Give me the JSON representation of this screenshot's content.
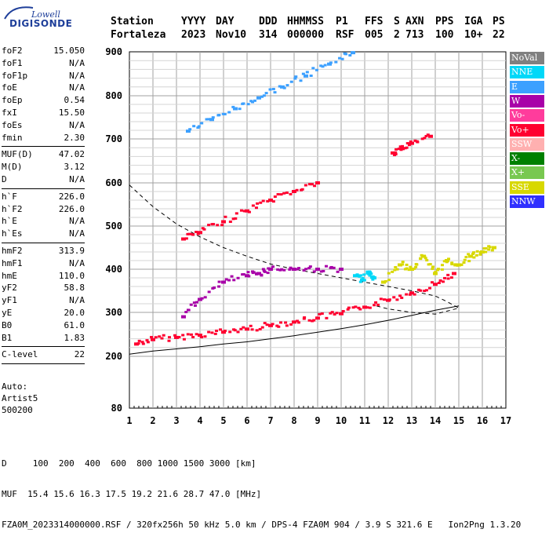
{
  "logo": {
    "top": "Lowell",
    "bottom": "DIGISONDE"
  },
  "header": {
    "line1": [
      "Station",
      "YYYY",
      "DAY",
      "DDD",
      "HHMMSS",
      "P1",
      "FFS",
      "S",
      "AXN",
      "PPS",
      "IGA",
      "PS"
    ],
    "line2": [
      "Fortaleza",
      "2023",
      "Nov10",
      "314",
      "000000",
      "RSF",
      "005",
      "2",
      "713",
      "100",
      "10+",
      "22"
    ]
  },
  "params_groups": [
    [
      {
        "label": "foF2",
        "value": "15.050"
      },
      {
        "label": "foF1",
        "value": "N/A"
      },
      {
        "label": "foF1p",
        "value": "N/A"
      },
      {
        "label": "foE",
        "value": "N/A"
      },
      {
        "label": "foEp",
        "value": "0.54"
      },
      {
        "label": "fxI",
        "value": "15.50"
      },
      {
        "label": "foEs",
        "value": "N/A"
      },
      {
        "label": "fmin",
        "value": "2.30"
      }
    ],
    [
      {
        "label": "MUF(D)",
        "value": "47.02"
      },
      {
        "label": "M(D)",
        "value": "3.12"
      },
      {
        "label": "D",
        "value": "N/A"
      }
    ],
    [
      {
        "label": "h`F",
        "value": "226.0"
      },
      {
        "label": "h`F2",
        "value": "226.0"
      },
      {
        "label": "h`E",
        "value": "N/A"
      },
      {
        "label": "h`Es",
        "value": "N/A"
      }
    ],
    [
      {
        "label": "hmF2",
        "value": "313.9"
      },
      {
        "label": "hmF1",
        "value": "N/A"
      },
      {
        "label": "hmE",
        "value": "110.0"
      },
      {
        "label": "yF2",
        "value": "58.8"
      },
      {
        "label": "yF1",
        "value": "N/A"
      },
      {
        "label": "yE",
        "value": "20.0"
      },
      {
        "label": "B0",
        "value": "61.0"
      },
      {
        "label": "B1",
        "value": "1.83"
      }
    ],
    [
      {
        "label": "C-level",
        "value": "22"
      }
    ]
  ],
  "auto": {
    "line1": "Auto:",
    "line2": "Artist5",
    "line3": "500200"
  },
  "legend": [
    {
      "name": "NoVal",
      "color": "#808080"
    },
    {
      "name": "NNE",
      "color": "#00d8f8"
    },
    {
      "name": "E",
      "color": "#3ca0ff"
    },
    {
      "name": "W",
      "color": "#a800a8"
    },
    {
      "name": "Vo-",
      "color": "#ff3c9c"
    },
    {
      "name": "Vo+",
      "color": "#ff0030"
    },
    {
      "name": "SSW",
      "color": "#ffb0b0"
    },
    {
      "name": "X-",
      "color": "#008000"
    },
    {
      "name": "X+",
      "color": "#78c850"
    },
    {
      "name": "SSE",
      "color": "#d8d800"
    },
    {
      "name": "NNW",
      "color": "#3030ff"
    }
  ],
  "bottom": {
    "line1": "D     100  200  400  600  800 1000 1500 3000 [km]",
    "line2": "MUF  15.4 15.6 16.3 17.5 19.2 21.6 28.7 47.0 [MHz]",
    "line3": "FZA0M_2023314000000.RSF / 320fx256h 50 kHz 5.0 km / DPS-4 FZA0M 904 / 3.9 S 321.6 E   Ion2Png 1.3.20"
  },
  "chart_data": {
    "type": "scatter",
    "x_ticks": [
      1,
      2,
      3,
      4,
      5,
      6,
      7,
      8,
      9,
      10,
      11,
      12,
      13,
      14,
      15,
      16,
      17
    ],
    "y_ticks": [
      80,
      200,
      300,
      400,
      500,
      600,
      700,
      800,
      900
    ],
    "xlim": [
      1,
      17
    ],
    "ylim": [
      80,
      900
    ],
    "y_scale": "nonlinear",
    "grid": true,
    "series": [
      {
        "name": "Vo+",
        "color": "#ff0030",
        "x": [
          1.3,
          2.0,
          3.0,
          4.0,
          5.0,
          6.0,
          7.0,
          8.0,
          9.0,
          10.0,
          11.0,
          12.0,
          13.0,
          14.0,
          14.8
        ],
        "y": [
          228,
          238,
          243,
          248,
          255,
          262,
          270,
          278,
          287,
          297,
          312,
          328,
          345,
          365,
          390
        ]
      },
      {
        "name": "W",
        "color": "#a800a8",
        "x": [
          3.3,
          4.0,
          5.0,
          6.0,
          6.5,
          7.0,
          8.0,
          9.0,
          10.0
        ],
        "y": [
          290,
          330,
          370,
          385,
          390,
          400,
          400,
          400,
          400
        ]
      },
      {
        "name": "Vo+",
        "color": "#ff0030",
        "x": [
          3.3,
          4.0,
          5.0,
          6.0,
          7.0,
          8.0,
          9.0
        ],
        "y": [
          470,
          485,
          510,
          535,
          560,
          580,
          600
        ]
      },
      {
        "name": "E",
        "color": "#3ca0ff",
        "x": [
          3.5,
          4.5,
          5.5,
          6.5,
          7.5,
          8.5,
          9.5,
          10.5
        ],
        "y": [
          718,
          745,
          770,
          795,
          820,
          845,
          872,
          898
        ]
      },
      {
        "name": "SSE",
        "color": "#d8d800",
        "x": [
          11.8,
          12.5,
          13.0,
          13.5,
          14.0,
          14.5,
          15.0,
          15.5,
          16.0,
          16.5
        ],
        "y": [
          370,
          410,
          400,
          430,
          390,
          420,
          410,
          430,
          440,
          450
        ]
      },
      {
        "name": "NNE",
        "color": "#00d8f8",
        "x": [
          10.6,
          10.9,
          11.2,
          11.4
        ],
        "y": [
          385,
          375,
          392,
          380
        ]
      },
      {
        "name": "Vo+",
        "color": "#ff0030",
        "x": [
          12.2,
          12.6,
          13.0,
          13.8
        ],
        "y": [
          668,
          678,
          690,
          706
        ]
      }
    ],
    "curves": [
      {
        "name": "dashed",
        "style": "dashed",
        "x": [
          1.0,
          2.0,
          3.0,
          4.0,
          5.0,
          6.0,
          7.0,
          8.0,
          9.0,
          10.0,
          11.0,
          12.0,
          13.0,
          14.0,
          14.5,
          15.0,
          14.5,
          14.0,
          13.0,
          12.0,
          11.5
        ],
        "y": [
          595,
          545,
          505,
          475,
          450,
          430,
          412,
          400,
          390,
          380,
          370,
          360,
          350,
          338,
          325,
          310,
          303,
          296,
          300,
          308,
          315
        ]
      },
      {
        "name": "solid",
        "style": "solid",
        "x": [
          1.0,
          2.0,
          3.0,
          4.0,
          5.0,
          6.0,
          7.0,
          8.0,
          9.0,
          10.0,
          11.0,
          12.0,
          13.0,
          14.0,
          14.5,
          15.0
        ],
        "y": [
          205,
          212,
          217,
          222,
          228,
          233,
          240,
          247,
          255,
          263,
          272,
          282,
          293,
          305,
          310,
          315
        ]
      }
    ]
  }
}
